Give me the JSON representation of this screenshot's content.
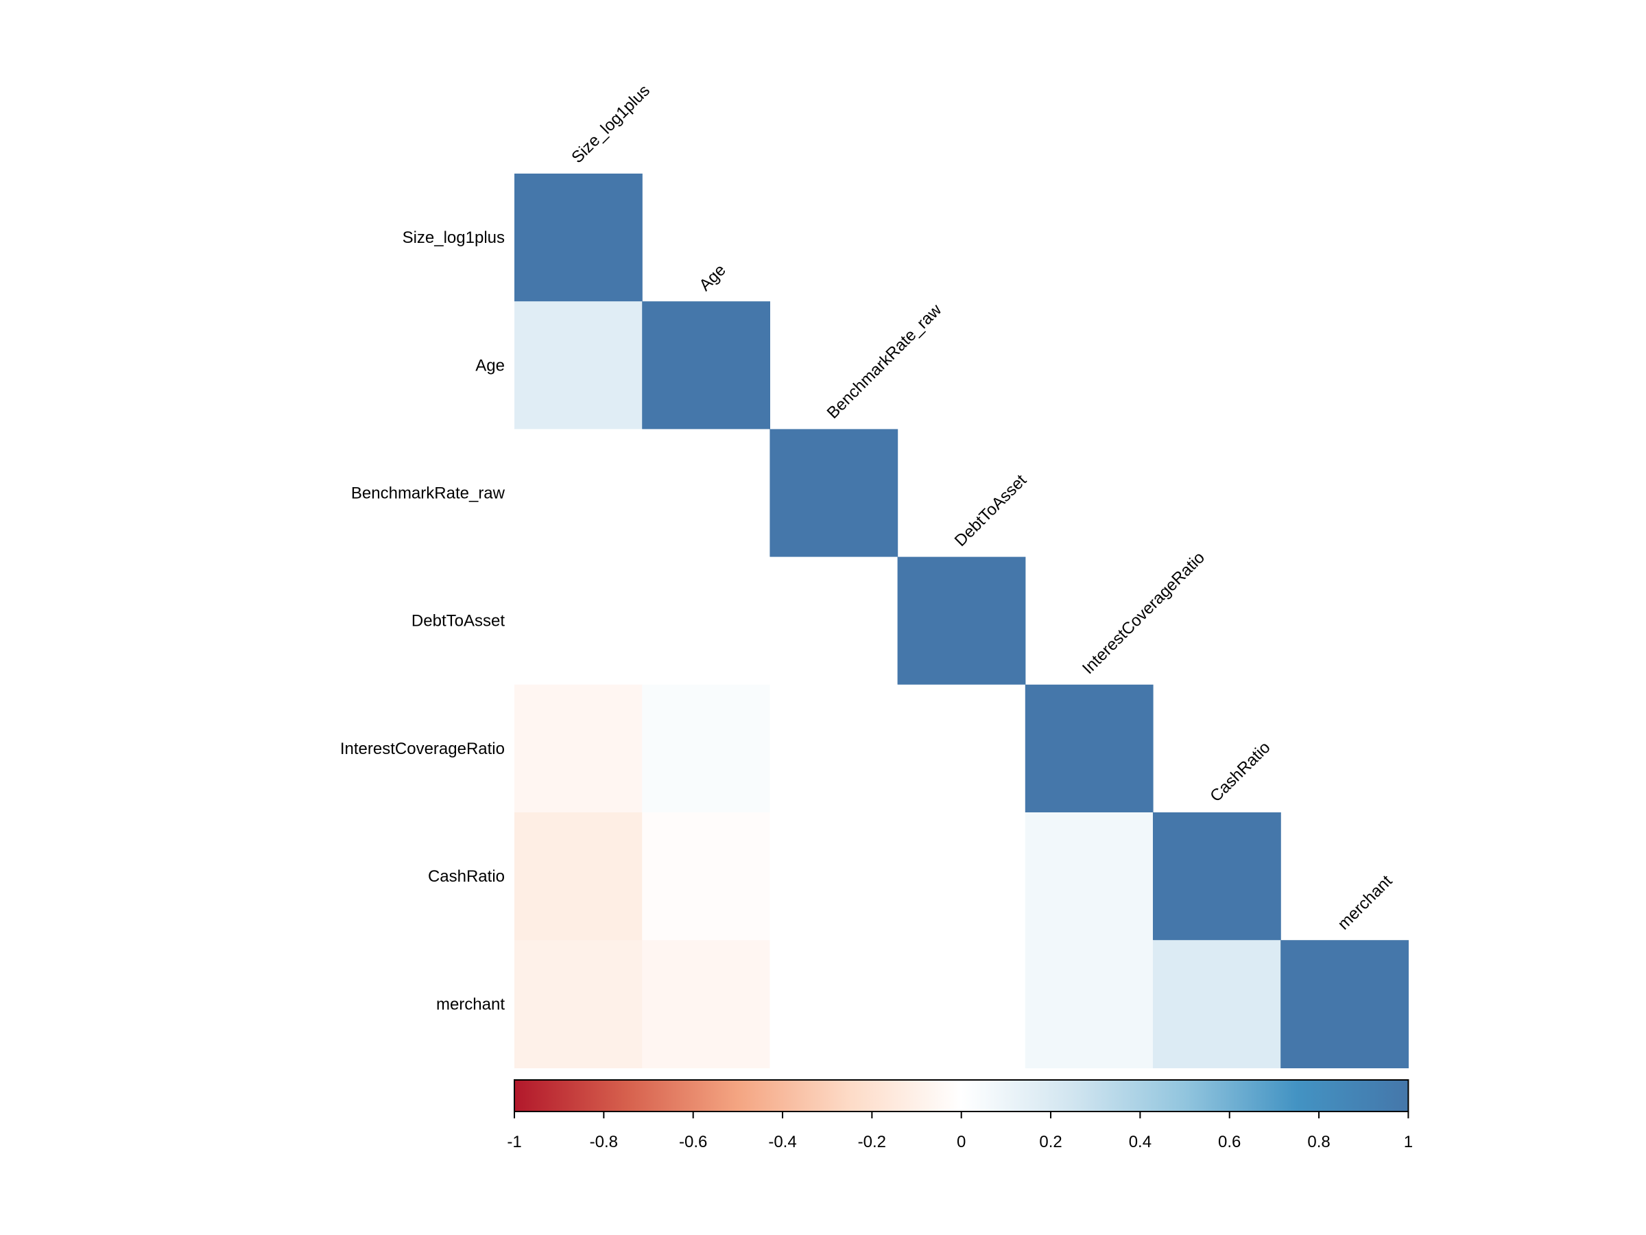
{
  "chart_data": {
    "type": "heatmap",
    "title": "",
    "variables": [
      "Size_log1plus",
      "Age",
      "BenchmarkRate_raw",
      "DebtToAsset",
      "InterestCoverageRatio",
      "CashRatio",
      "merchant"
    ],
    "matrix_type": "lower",
    "values": [
      [
        1.0
      ],
      [
        0.17,
        1.0
      ],
      [
        0.0,
        0.0,
        1.0
      ],
      [
        0.0,
        0.0,
        0.0,
        1.0
      ],
      [
        -0.06,
        0.03,
        0.0,
        0.0,
        1.0
      ],
      [
        -0.12,
        -0.02,
        0.0,
        0.0,
        0.07,
        1.0
      ],
      [
        -0.1,
        -0.06,
        0.0,
        0.0,
        0.07,
        0.19,
        1.0
      ]
    ],
    "colorbar": {
      "range": [
        -1,
        1
      ],
      "ticks": [
        "-1",
        "-0.8",
        "-0.6",
        "-0.4",
        "-0.2",
        "0",
        "0.2",
        "0.4",
        "0.6",
        "0.8",
        "1"
      ],
      "tick_values": [
        -1,
        -0.8,
        -0.6,
        -0.4,
        -0.2,
        0,
        0.2,
        0.4,
        0.6,
        0.8,
        1
      ],
      "colors": [
        "#b2182b",
        "#d6604d",
        "#f4a582",
        "#fddbc7",
        "#ffffff",
        "#d1e5f0",
        "#92c5de",
        "#4393c3",
        "#4577aa"
      ],
      "placement": "bottom"
    }
  }
}
